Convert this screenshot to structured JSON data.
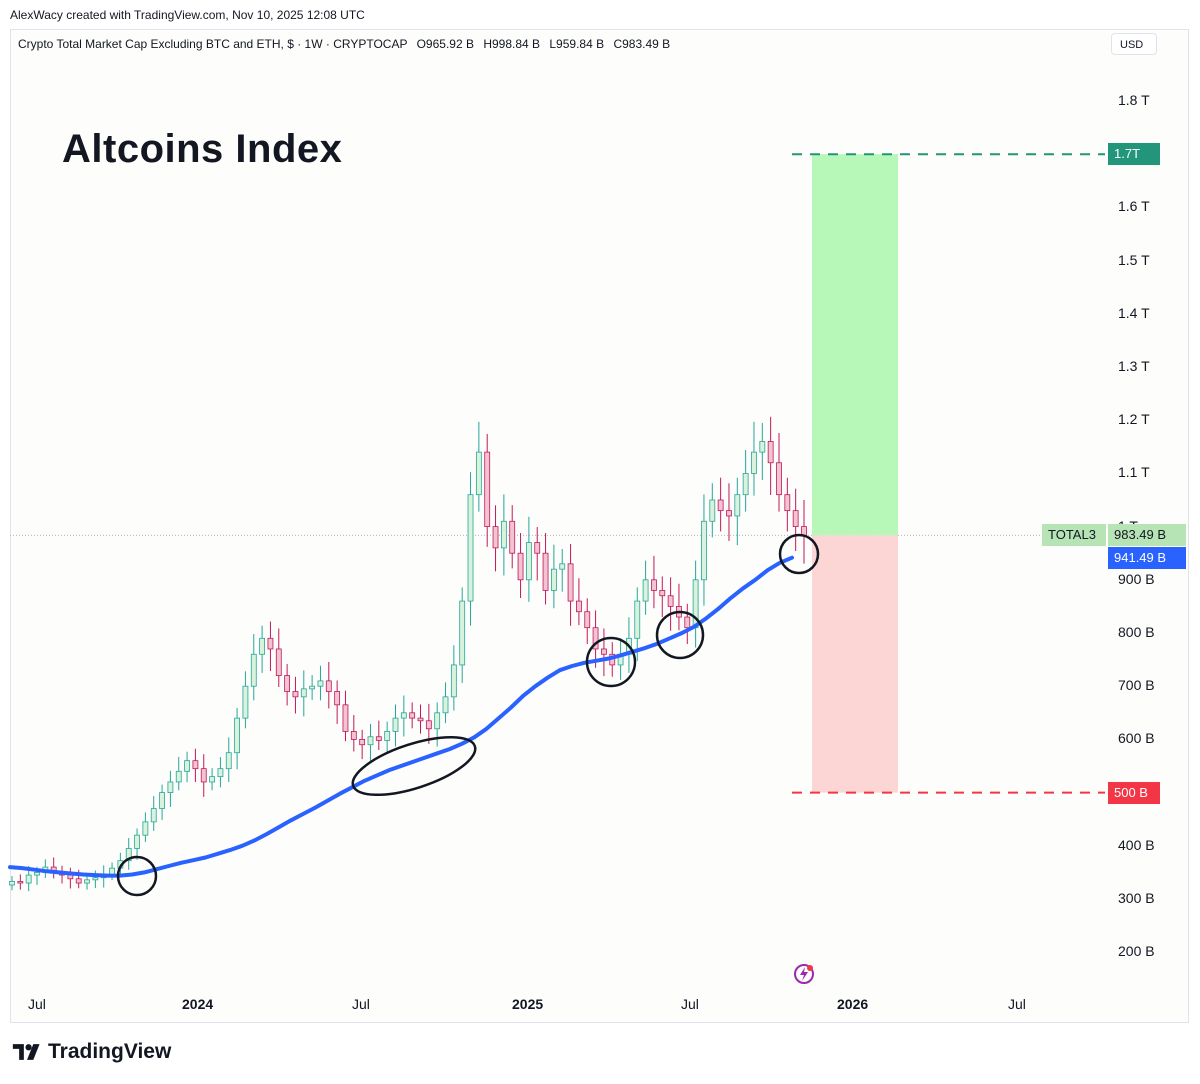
{
  "credit": "AlexWacy created with TradingView.com, Nov 10, 2025 12:08 UTC",
  "header": {
    "symbol": "Crypto Total Market Cap Excluding BTC and ETH, $ · 1W · CRYPTOCAP",
    "open": "O965.92 B",
    "high": "H998.84 B",
    "low": "L959.84 B",
    "close": "C983.49 B"
  },
  "currency_button": "USD",
  "annotation_title": "Altcoins Index",
  "price_axis": [
    "1.8 T",
    "1.7 T",
    "1.6 T",
    "1.5 T",
    "1.4 T",
    "1.3 T",
    "1.2 T",
    "1.1 T",
    "1 T",
    "900 B",
    "800 B",
    "700 B",
    "600 B",
    "500 B",
    "400 B",
    "300 B",
    "200 B"
  ],
  "time_axis": [
    {
      "label": "Jul",
      "bold": false
    },
    {
      "label": "2024",
      "bold": true
    },
    {
      "label": "Jul",
      "bold": false
    },
    {
      "label": "2025",
      "bold": true
    },
    {
      "label": "Jul",
      "bold": false
    },
    {
      "label": "2026",
      "bold": true
    },
    {
      "label": "Jul",
      "bold": false
    }
  ],
  "tags": {
    "target": "1.7T",
    "symbol_name": "TOTAL3",
    "last_price": "983.49 B",
    "ma_price": "941.49 B",
    "stop": "500 B"
  },
  "colors": {
    "up": "#26a69a",
    "down": "#c2185b",
    "up_body": "#d9f2dc",
    "down_body": "#f2c3d2",
    "ma": "#2962ff",
    "profit_zone": "#b7f7b8",
    "loss_zone": "#fcd5d5",
    "target_line": "#22957a",
    "stop_line": "#f23645",
    "ma_tag": "#2962ff",
    "price_tag": "#b7e4b4"
  },
  "brand": "TradingView",
  "chart_data": {
    "type": "candlestick",
    "title": "Crypto Total Market Cap Excluding BTC and ETH",
    "interval": "1W",
    "ylabel": "USD",
    "ylim": [
      150,
      1880
    ],
    "y_unit": "B",
    "x_ticks": [
      "Jul",
      "2024",
      "Jul",
      "2025",
      "Jul",
      "2026",
      "Jul"
    ],
    "series": [
      {
        "name": "TOTAL3",
        "values_close": [
          333,
          330,
          345,
          350,
          360,
          352,
          345,
          338,
          330,
          336,
          340,
          346,
          358,
          372,
          395,
          420,
          445,
          470,
          500,
          520,
          540,
          560,
          545,
          520,
          530,
          545,
          575,
          640,
          700,
          760,
          790,
          770,
          720,
          690,
          680,
          695,
          700,
          710,
          690,
          665,
          615,
          600,
          590,
          605,
          598,
          615,
          640,
          650,
          640,
          635,
          620,
          650,
          680,
          740,
          860,
          1060,
          1140,
          1000,
          960,
          1010,
          950,
          900,
          970,
          950,
          880,
          920,
          930,
          860,
          840,
          810,
          770,
          760,
          740,
          760,
          790,
          860,
          900,
          880,
          870,
          850,
          830,
          810,
          900,
          1010,
          1050,
          1030,
          1020,
          1060,
          1100,
          1140,
          1160,
          1120,
          1060,
          1030,
          1000,
          983.49
        ]
      },
      {
        "name": "MA",
        "values": [
          360,
          358,
          355,
          352,
          350,
          348,
          346,
          345,
          344,
          344,
          346,
          350,
          356,
          362,
          368,
          373,
          378,
          385,
          392,
          400,
          410,
          422,
          435,
          448,
          460,
          472,
          485,
          498,
          510,
          522,
          532,
          542,
          550,
          558,
          566,
          574,
          582,
          592,
          604,
          620,
          640,
          660,
          682,
          700,
          716,
          730,
          738,
          744,
          748,
          752,
          758,
          765,
          772,
          780,
          790,
          800,
          812,
          828,
          846,
          866,
          884,
          900,
          918,
          932,
          941.49
        ]
      }
    ],
    "annotations": {
      "target": 1700,
      "entry": 983.49,
      "stop": 500,
      "ma_last": 941.49
    }
  }
}
